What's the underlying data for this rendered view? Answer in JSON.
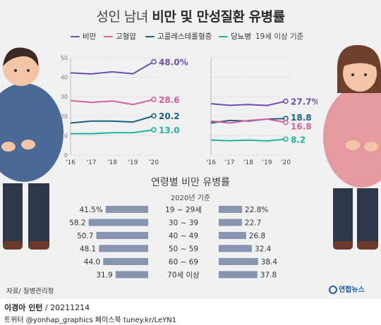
{
  "title": {
    "light": "성인 남녀 ",
    "bold": "비만 및 만성질환 유병률"
  },
  "legend": {
    "items": [
      {
        "label": "비만",
        "color": "#6b4fb6"
      },
      {
        "label": "고혈압",
        "color": "#d5609b"
      },
      {
        "label": "고콜레스테롤혈증",
        "color": "#1d5f86"
      },
      {
        "label": "당뇨병",
        "color": "#1fb4a0"
      }
    ],
    "note": "19세 이상 기준"
  },
  "age_chart": {
    "title": "연령별 비만 유병률",
    "note": "2020년 기준"
  },
  "footer": {
    "source": "자료/ 질병관리청",
    "logo": "연합뉴스",
    "byline_name": "이경아 인턴",
    "byline_date": " / 20211214",
    "social": "트위터 @yonhap_graphics  페이스북 tuney.kr/LeYN1"
  },
  "chart_data": [
    {
      "type": "line",
      "x": [
        "'16",
        "'17",
        "'18",
        "'19",
        "'20"
      ],
      "ylim": [
        0,
        50
      ],
      "y_ticks": [
        "0",
        "10",
        "20",
        "30",
        "40",
        "50"
      ],
      "series": [
        {
          "name": "비만",
          "color": "#6b4fb6",
          "values": [
            42.3,
            41.7,
            42.8,
            41.8,
            48.0
          ],
          "end_label": "48.0%"
        },
        {
          "name": "고혈압",
          "color": "#d5609b",
          "values": [
            28.0,
            27.1,
            27.8,
            26.0,
            28.6
          ],
          "end_label": "28.6"
        },
        {
          "name": "고콜레스테롤혈증",
          "color": "#1d5f86",
          "values": [
            16.5,
            17.5,
            17.5,
            17.0,
            20.2
          ],
          "end_label": "20.2"
        },
        {
          "name": "당뇨병",
          "color": "#1fb4a0",
          "values": [
            11.0,
            11.0,
            11.5,
            11.5,
            13.0
          ],
          "end_label": "13.0"
        }
      ]
    },
    {
      "type": "line",
      "x": [
        "'16",
        "'17",
        "'18",
        "'19",
        "'20"
      ],
      "ylim": [
        0,
        50
      ],
      "series": [
        {
          "name": "비만",
          "color": "#6b4fb6",
          "values": [
            26.4,
            25.6,
            26.0,
            25.5,
            27.7
          ],
          "end_label": "27.7%"
        },
        {
          "name": "고콜레스테롤혈증",
          "color": "#1d5f86",
          "values": [
            16.5,
            17.8,
            17.5,
            18.5,
            18.8
          ],
          "end_label": "18.8"
        },
        {
          "name": "고혈압",
          "color": "#d5609b",
          "values": [
            17.5,
            16.5,
            17.8,
            18.5,
            16.8
          ],
          "end_label": "16.8"
        },
        {
          "name": "당뇨병",
          "color": "#1fb4a0",
          "values": [
            7.7,
            7.4,
            7.7,
            7.3,
            8.2
          ],
          "end_label": "8.2"
        }
      ]
    },
    {
      "type": "bar",
      "orientation": "horizontal-diverging",
      "categories": [
        "19 ~ 29세",
        "30 ~ 39",
        "40 ~ 49",
        "50 ~ 59",
        "60 ~ 69",
        "70세 이상"
      ],
      "series": [
        {
          "name": "left",
          "values": [
            41.5,
            58.2,
            50.7,
            48.1,
            44.0,
            31.9
          ],
          "value_labels": [
            "41.5%",
            "58.2",
            "50.7",
            "48.1",
            "44.0",
            "31.9"
          ],
          "color": "#8895b0"
        },
        {
          "name": "right",
          "values": [
            22.8,
            22.7,
            26.8,
            32.4,
            38.4,
            37.8
          ],
          "value_labels": [
            "22.8%",
            "22.7",
            "26.8",
            "32.4",
            "38.4",
            "37.8"
          ],
          "color": "#8895b0"
        }
      ]
    }
  ]
}
